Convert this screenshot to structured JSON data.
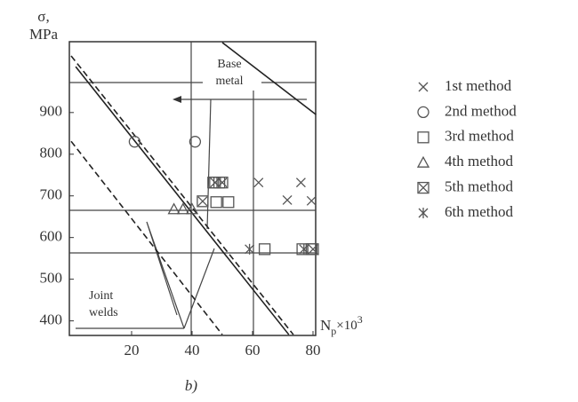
{
  "chart_data": {
    "type": "scatter",
    "y_label": [
      "σ,",
      "MPa"
    ],
    "x_label": {
      "base": "N",
      "sub": "p",
      "mid": "×10",
      "sup": "3"
    },
    "caption": "b)",
    "annotations": [
      "Base metal",
      "Joint welds"
    ],
    "xlim": [
      0,
      81
    ],
    "ylim": [
      365,
      1070
    ],
    "xticks": [
      20,
      40,
      60,
      80
    ],
    "yticks": [
      400,
      500,
      600,
      700,
      800,
      900
    ],
    "series": [
      {
        "name": "1st method",
        "marker": "x",
        "color": "#555555",
        "x": [
          62,
          76,
          71.5,
          79.5
        ],
        "values": [
          732,
          732,
          690,
          688
        ]
      },
      {
        "name": "2nd method",
        "marker": "o",
        "color": "#555555",
        "x": [
          21,
          41
        ],
        "values": [
          830,
          830
        ]
      },
      {
        "name": "3rd method",
        "marker": "s",
        "color": "#555555",
        "x": [
          47,
          49,
          48,
          52,
          64,
          76.5,
          79.5
        ],
        "values": [
          732,
          732,
          685,
          685,
          572,
          572,
          572
        ]
      },
      {
        "name": "4th method",
        "marker": "^",
        "color": "#555555",
        "x": [
          34,
          37,
          40
        ],
        "values": [
          668,
          668,
          668
        ]
      },
      {
        "name": "5th method",
        "marker": "sx",
        "color": "#555555",
        "x": [
          43.5,
          47.6,
          50,
          80
        ],
        "values": [
          687,
          732,
          732,
          572
        ]
      },
      {
        "name": "6th method",
        "marker": "*",
        "color": "#555555",
        "x": [
          59,
          77
        ],
        "values": [
          572,
          572
        ]
      }
    ],
    "lines": [
      {
        "dash": false,
        "x": [
          1.5,
          72
        ],
        "values": [
          1010,
          367
        ]
      },
      {
        "dash": false,
        "x": [
          50,
          81
        ],
        "values": [
          1068,
          895
        ]
      },
      {
        "dash": true,
        "x": [
          0,
          73.5
        ],
        "values": [
          1036,
          367
        ]
      },
      {
        "dash": true,
        "x": [
          0,
          50
        ],
        "values": [
          831,
          367
        ]
      }
    ]
  }
}
